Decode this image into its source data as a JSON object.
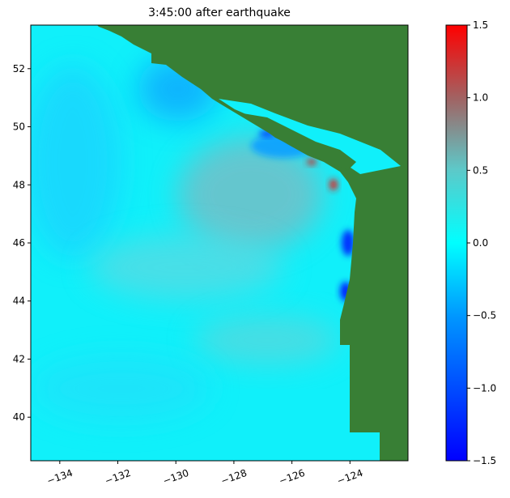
{
  "chart_data": {
    "type": "heatmap",
    "title": "3:45:00 after earthquake",
    "xlim": [
      -135,
      -122
    ],
    "xticks": [
      {
        "value": -134,
        "label": "−134"
      },
      {
        "value": -132,
        "label": "−132"
      },
      {
        "value": -130,
        "label": "−130"
      },
      {
        "value": -128,
        "label": "−128"
      },
      {
        "value": -126,
        "label": "−126"
      },
      {
        "value": -124,
        "label": "−124"
      }
    ],
    "ylim": [
      38.5,
      53.5
    ],
    "yticks": [
      40,
      42,
      44,
      46,
      48,
      50,
      52
    ],
    "colorbar": {
      "lim": [
        -1.5,
        1.5
      ],
      "ticks": [
        {
          "value": -1.5,
          "label": "−1.5"
        },
        {
          "value": -1.0,
          "label": "−1.0"
        },
        {
          "value": -0.5,
          "label": "−0.5"
        },
        {
          "value": 0,
          "label": "0.0"
        },
        {
          "value": 0.5,
          "label": "0.5"
        },
        {
          "value": 1.0,
          "label": "1.0"
        },
        {
          "value": 1.5,
          "label": "1.5"
        }
      ]
    }
  }
}
